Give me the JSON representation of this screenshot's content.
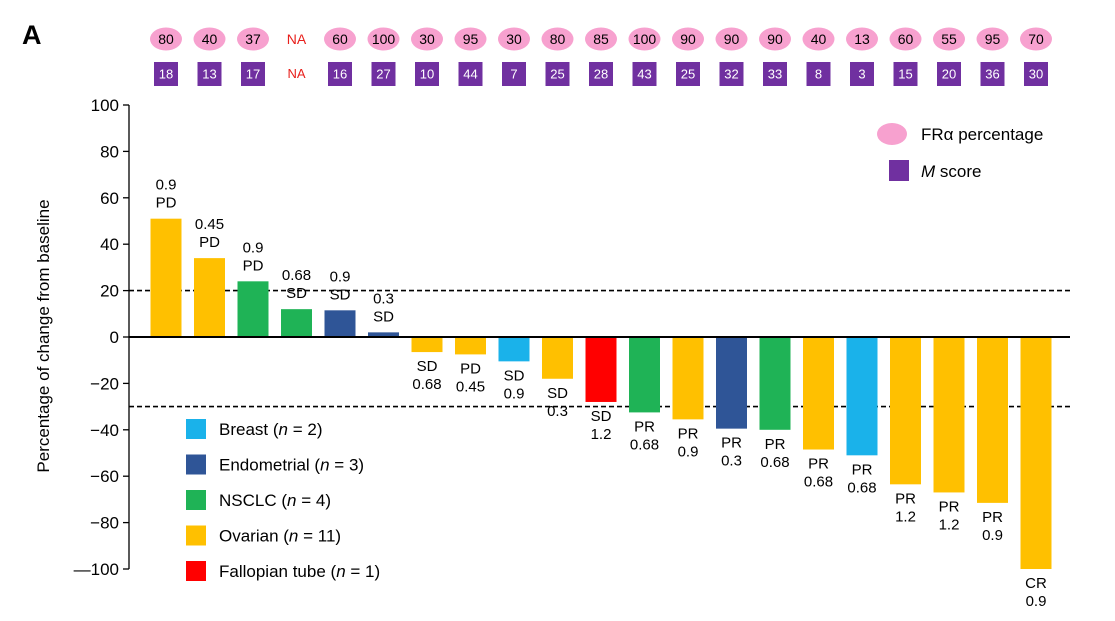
{
  "panel_label": "A",
  "chart_data": {
    "type": "bar",
    "ylabel": "Percentage of change from baseline",
    "ylim": [
      -100,
      100
    ],
    "yticks": [
      "100",
      "80",
      "60",
      "40",
      "20",
      "0",
      "−20",
      "−40",
      "−60",
      "−80",
      "—100"
    ],
    "ytick_values": [
      100,
      80,
      60,
      40,
      20,
      0,
      -20,
      -40,
      -60,
      -80,
      -100
    ],
    "reference_lines": [
      20,
      -30
    ],
    "colors": {
      "Breast": "#1ab2ea",
      "Endometrial": "#2f5597",
      "NSCLC": "#1fb356",
      "Ovarian": "#ffc000",
      "Fallopian tube": "#ff0000",
      "fra_marker": "#f7a1cf",
      "m_marker": "#7030a0"
    },
    "bars": [
      {
        "value": 51,
        "cancer": "Ovarian",
        "response": "PD",
        "dose": "0.9",
        "fra": "80",
        "m": "18"
      },
      {
        "value": 34,
        "cancer": "Ovarian",
        "response": "PD",
        "dose": "0.45",
        "fra": "40",
        "m": "13"
      },
      {
        "value": 24,
        "cancer": "NSCLC",
        "response": "PD",
        "dose": "0.9",
        "fra": "37",
        "m": "17"
      },
      {
        "value": 12,
        "cancer": "NSCLC",
        "response": "SD",
        "dose": "0.68",
        "fra": "NA",
        "m": "NA"
      },
      {
        "value": 11.5,
        "cancer": "Endometrial",
        "response": "SD",
        "dose": "0.9",
        "fra": "60",
        "m": "16"
      },
      {
        "value": 2,
        "cancer": "Endometrial",
        "response": "SD",
        "dose": "0.3",
        "fra": "100",
        "m": "27"
      },
      {
        "value": -6.5,
        "cancer": "Ovarian",
        "response": "SD",
        "dose": "0.68",
        "fra": "30",
        "m": "10"
      },
      {
        "value": -7.5,
        "cancer": "Ovarian",
        "response": "PD",
        "dose": "0.45",
        "fra": "95",
        "m": "44"
      },
      {
        "value": -10.5,
        "cancer": "Breast",
        "response": "SD",
        "dose": "0.9",
        "fra": "30",
        "m": "7"
      },
      {
        "value": -18,
        "cancer": "Ovarian",
        "response": "SD",
        "dose": "0.3",
        "fra": "80",
        "m": "25"
      },
      {
        "value": -28,
        "cancer": "Fallopian tube",
        "response": "SD",
        "dose": "1.2",
        "fra": "85",
        "m": "28"
      },
      {
        "value": -32.5,
        "cancer": "NSCLC",
        "response": "PR",
        "dose": "0.68",
        "fra": "100",
        "m": "43"
      },
      {
        "value": -35.5,
        "cancer": "Ovarian",
        "response": "PR",
        "dose": "0.9",
        "fra": "90",
        "m": "25"
      },
      {
        "value": -39.5,
        "cancer": "Endometrial",
        "response": "PR",
        "dose": "0.3",
        "fra": "90",
        "m": "32"
      },
      {
        "value": -40,
        "cancer": "NSCLC",
        "response": "PR",
        "dose": "0.68",
        "fra": "90",
        "m": "33"
      },
      {
        "value": -48.5,
        "cancer": "Ovarian",
        "response": "PR",
        "dose": "0.68",
        "fra": "40",
        "m": "8"
      },
      {
        "value": -51,
        "cancer": "Breast",
        "response": "PR",
        "dose": "0.68",
        "fra": "13",
        "m": "3"
      },
      {
        "value": -63.5,
        "cancer": "Ovarian",
        "response": "PR",
        "dose": "1.2",
        "fra": "60",
        "m": "15"
      },
      {
        "value": -67,
        "cancer": "Ovarian",
        "response": "PR",
        "dose": "1.2",
        "fra": "55",
        "m": "20"
      },
      {
        "value": -71.5,
        "cancer": "Ovarian",
        "response": "PR",
        "dose": "0.9",
        "fra": "95",
        "m": "36"
      },
      {
        "value": -100,
        "cancer": "Ovarian",
        "response": "CR",
        "dose": "0.9",
        "fra": "70",
        "m": "30"
      }
    ],
    "marker_legend": [
      {
        "key": "fra",
        "text_prefix": "FRα percentage",
        "text_italic": "",
        "text_suffix": ""
      },
      {
        "key": "m",
        "text_prefix": "",
        "text_italic": "M",
        "text_suffix": " score"
      }
    ],
    "cancer_legend": [
      {
        "cancer": "Breast",
        "prefix": "Breast (",
        "italic": "n",
        "suffix": " = 2)"
      },
      {
        "cancer": "Endometrial",
        "prefix": "Endometrial (",
        "italic": "n",
        "suffix": " = 3)"
      },
      {
        "cancer": "NSCLC",
        "prefix": "NSCLC (",
        "italic": "n",
        "suffix": " = 4)"
      },
      {
        "cancer": "Ovarian",
        "prefix": "Ovarian (",
        "italic": "n",
        "suffix": " = 11)"
      },
      {
        "cancer": "Fallopian tube",
        "prefix": "Fallopian tube (",
        "italic": "n",
        "suffix": " = 1)"
      }
    ]
  }
}
